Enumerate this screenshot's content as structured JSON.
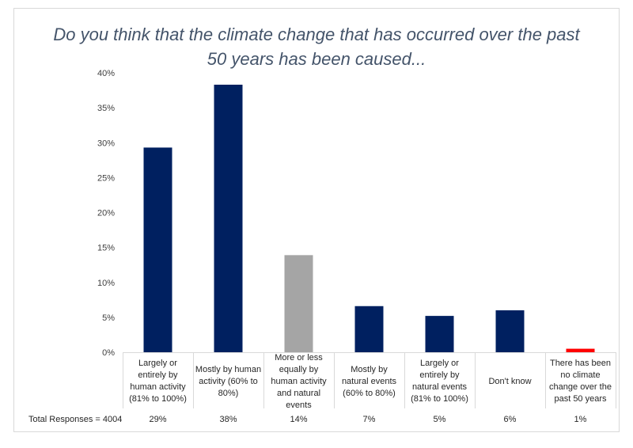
{
  "chart_data": {
    "type": "bar",
    "title_lines": [
      "Do you think that the climate change that has occurred over the past",
      "50 years has been caused..."
    ],
    "categories": [
      "Largely or entirely by human activity (81% to 100%)",
      "Mostly by human activity (60% to 80%)",
      "More or less equally by human activity and natural events",
      "Mostly by natural events (60% to 80%)",
      "Largely or entirely by natural events (81% to 100%)",
      "Don't know",
      "There has been no climate change over the past 50 years"
    ],
    "category_label_lines": [
      [
        "Largely or",
        "entirely by",
        "human activity",
        "(81% to 100%)"
      ],
      [
        "Mostly by human",
        "activity (60% to",
        "80%)"
      ],
      [
        "More or less",
        "equally by",
        "human activity",
        "and natural",
        "events"
      ],
      [
        "Mostly by",
        "natural events",
        "(60% to 80%)"
      ],
      [
        "Largely or",
        "entirely by",
        "natural events",
        "(81% to 100%)"
      ],
      [
        "Don't know"
      ],
      [
        "There has been",
        "no climate",
        "change over the",
        "past 50 years"
      ]
    ],
    "values": [
      29.3,
      38.3,
      13.9,
      6.6,
      5.2,
      6.0,
      0.5
    ],
    "bar_colors": [
      "#002060",
      "#002060",
      "#a5a5a5",
      "#002060",
      "#002060",
      "#002060",
      "#ff0000"
    ],
    "ylim": [
      0,
      40
    ],
    "yticks": [
      0,
      5,
      10,
      15,
      20,
      25,
      30,
      35,
      40
    ],
    "ytick_labels": [
      "0%",
      "5%",
      "10%",
      "15%",
      "20%",
      "25%",
      "30%",
      "35%",
      "40%"
    ],
    "gridlines": false,
    "total_responses_label": "Total Responses =",
    "total_responses_value": "4004",
    "response_percentages": [
      "29%",
      "38%",
      "14%",
      "7%",
      "5%",
      "6%",
      "1%"
    ]
  }
}
